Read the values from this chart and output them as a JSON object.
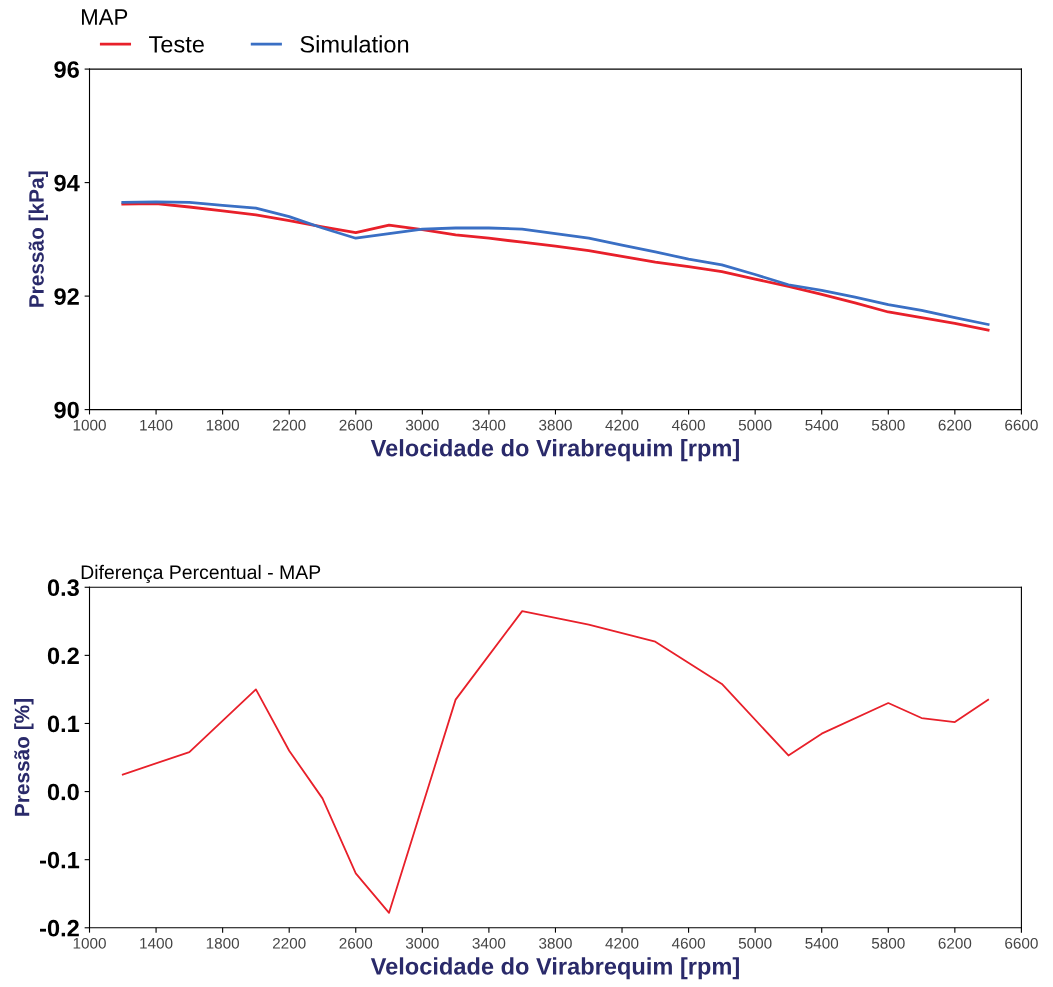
{
  "chart_data": [
    {
      "type": "line",
      "title": "MAP",
      "xlabel": "Velocidade do Virabrequim [rpm]",
      "ylabel": "Pressão [kPa]",
      "x": [
        1200,
        1400,
        1600,
        1800,
        2000,
        2200,
        2400,
        2600,
        2800,
        3000,
        3200,
        3400,
        3600,
        3800,
        4000,
        4200,
        4400,
        4600,
        4800,
        5000,
        5200,
        5400,
        5600,
        5800,
        6000,
        6200,
        6400
      ],
      "series": [
        {
          "name": "Teste",
          "color": "#e8202a",
          "values": [
            93.62,
            93.63,
            93.57,
            93.5,
            93.43,
            93.33,
            93.22,
            93.12,
            93.25,
            93.17,
            93.08,
            93.02,
            92.95,
            92.88,
            92.8,
            92.7,
            92.6,
            92.52,
            92.43,
            92.3,
            92.17,
            92.03,
            91.88,
            91.72,
            91.62,
            91.52,
            91.4
          ]
        },
        {
          "name": "Simulation",
          "color": "#3a6fc4",
          "values": [
            93.65,
            93.66,
            93.65,
            93.6,
            93.55,
            93.4,
            93.2,
            93.02,
            93.1,
            93.18,
            93.2,
            93.2,
            93.18,
            93.1,
            93.02,
            92.9,
            92.78,
            92.65,
            92.55,
            92.38,
            92.2,
            92.1,
            91.98,
            91.85,
            91.75,
            91.62,
            91.5
          ]
        }
      ],
      "xlim": [
        1000,
        6600
      ],
      "xticks": [
        1000,
        1400,
        1800,
        2200,
        2600,
        3000,
        3400,
        3800,
        4200,
        4600,
        5000,
        5400,
        5800,
        6200,
        6600
      ],
      "ylim": [
        90,
        96
      ],
      "yticks": [
        90,
        92,
        94,
        96
      ],
      "grid": false,
      "legend": "top left"
    },
    {
      "type": "line",
      "title": "Diferença Percentual - MAP",
      "xlabel": "Velocidade do Virabrequim [rpm]",
      "ylabel": "Pressão [%]",
      "x": [
        1200,
        1600,
        2000,
        2200,
        2400,
        2600,
        2800,
        3200,
        3600,
        3800,
        4000,
        4400,
        4800,
        5200,
        5400,
        5800,
        6000,
        6200,
        6400
      ],
      "series": [
        {
          "color": "#e8202a",
          "values": [
            0.025,
            0.058,
            0.15,
            0.06,
            -0.01,
            -0.12,
            -0.178,
            0.135,
            0.265,
            0.255,
            0.245,
            0.22,
            0.158,
            0.053,
            0.085,
            0.13,
            0.108,
            0.102,
            0.135
          ]
        }
      ],
      "xlim": [
        1000,
        6600
      ],
      "xticks": [
        1000,
        1400,
        1800,
        2200,
        2600,
        3000,
        3400,
        3800,
        4200,
        4600,
        5000,
        5400,
        5800,
        6200,
        6600
      ],
      "ylim": [
        -0.2,
        0.3
      ],
      "yticks": [
        {
          "value": -0.2,
          "label": "-0.2"
        },
        {
          "value": -0.1,
          "label": "-0.1"
        },
        {
          "value": 0.0,
          "label": "0.0"
        },
        0.1,
        0.2,
        0.3
      ],
      "grid": false
    }
  ]
}
